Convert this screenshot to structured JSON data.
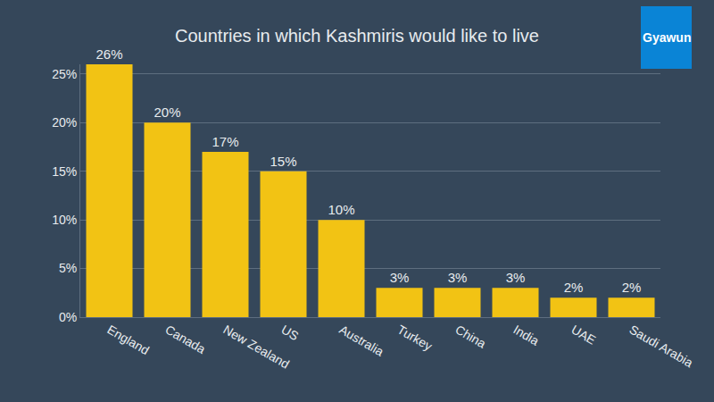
{
  "chart_data": {
    "type": "bar",
    "title": "Countries in which Kashmiris would like to live",
    "annotations": [
      "Gyawun"
    ],
    "categories": [
      "England",
      "Canada",
      "New Zealand",
      "US",
      "Australia",
      "Turkey",
      "China",
      "India",
      "UAE",
      "Saudi Arabia"
    ],
    "values": [
      26,
      20,
      17,
      15,
      10,
      3,
      3,
      3,
      2,
      2
    ],
    "value_labels": [
      "26%",
      "20%",
      "17%",
      "15%",
      "10%",
      "3%",
      "3%",
      "3%",
      "2%",
      "2%"
    ],
    "color": "#f2c314",
    "ylim": [
      0,
      26
    ],
    "yticks": [
      {
        "value": 0,
        "label": "0%"
      },
      {
        "value": 5,
        "label": "5%"
      },
      {
        "value": 10,
        "label": "10%"
      },
      {
        "value": 15,
        "label": "15%"
      },
      {
        "value": 20,
        "label": "20%"
      },
      {
        "value": 25,
        "label": "25%"
      }
    ],
    "grid": true,
    "data_labels": true
  }
}
